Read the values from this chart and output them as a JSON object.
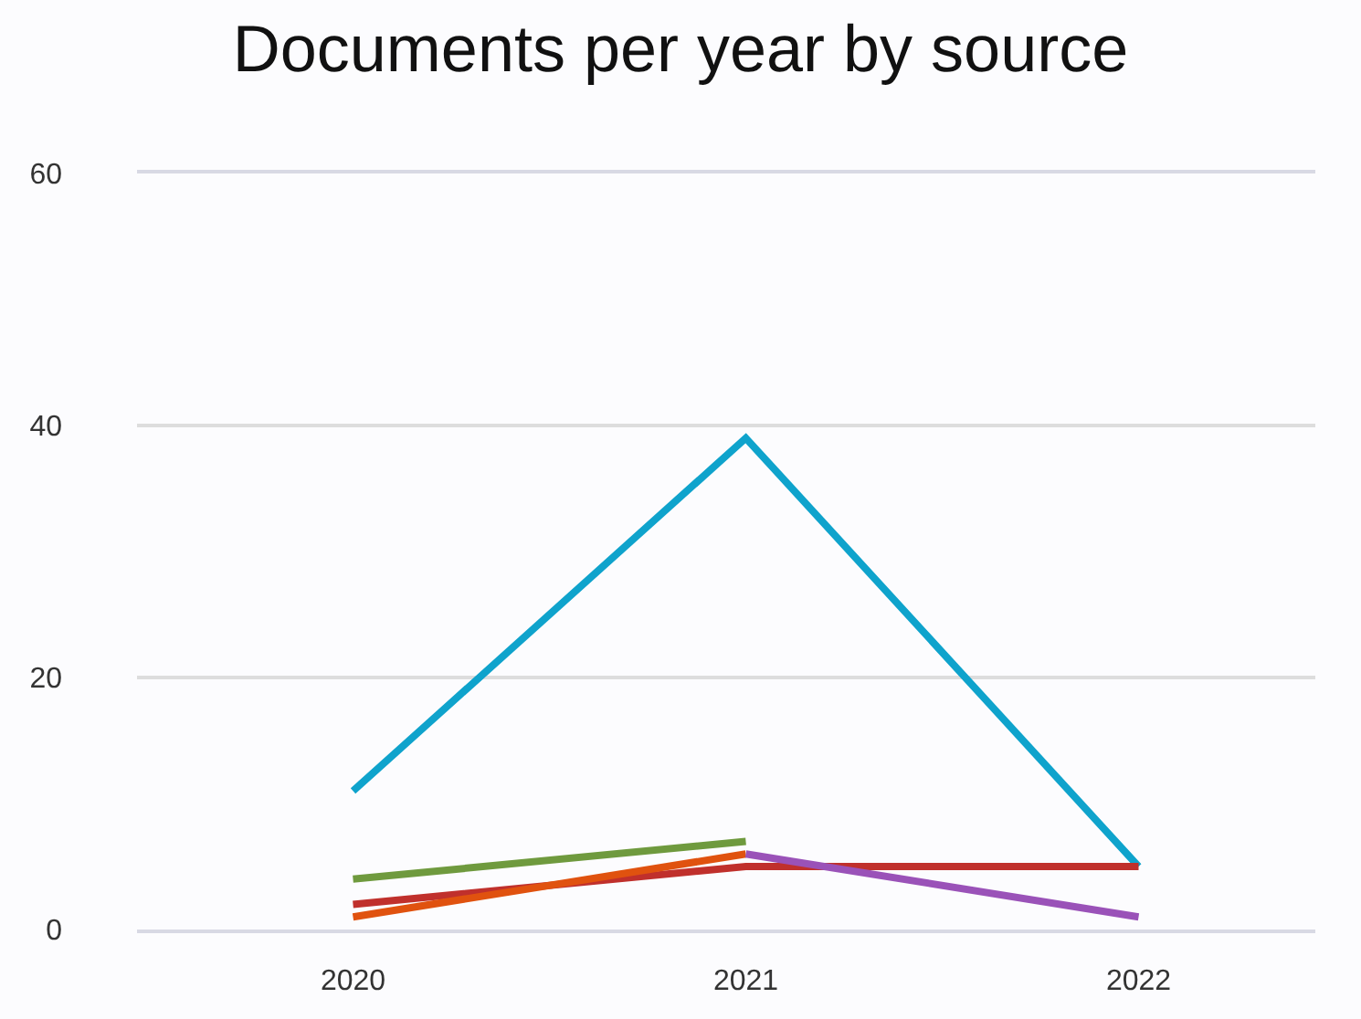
{
  "chart_data": {
    "type": "line",
    "title": "Documents per year by source",
    "categories": [
      "2020",
      "2021",
      "2022"
    ],
    "series": [
      {
        "color": "#0fa3cc",
        "values": [
          11,
          39,
          5
        ]
      },
      {
        "color": "#6f9a3e",
        "values": [
          4,
          7,
          null
        ]
      },
      {
        "color": "#c0302c",
        "values": [
          2,
          5,
          5
        ]
      },
      {
        "color": "#e0520f",
        "values": [
          1,
          6,
          null
        ]
      },
      {
        "color": "#9a52b8",
        "values": [
          null,
          6,
          1
        ]
      }
    ],
    "ylim": [
      0,
      60
    ],
    "yticks": [
      0,
      20,
      40,
      60
    ],
    "grid": "y",
    "marker": "none",
    "line_style": "solid"
  }
}
